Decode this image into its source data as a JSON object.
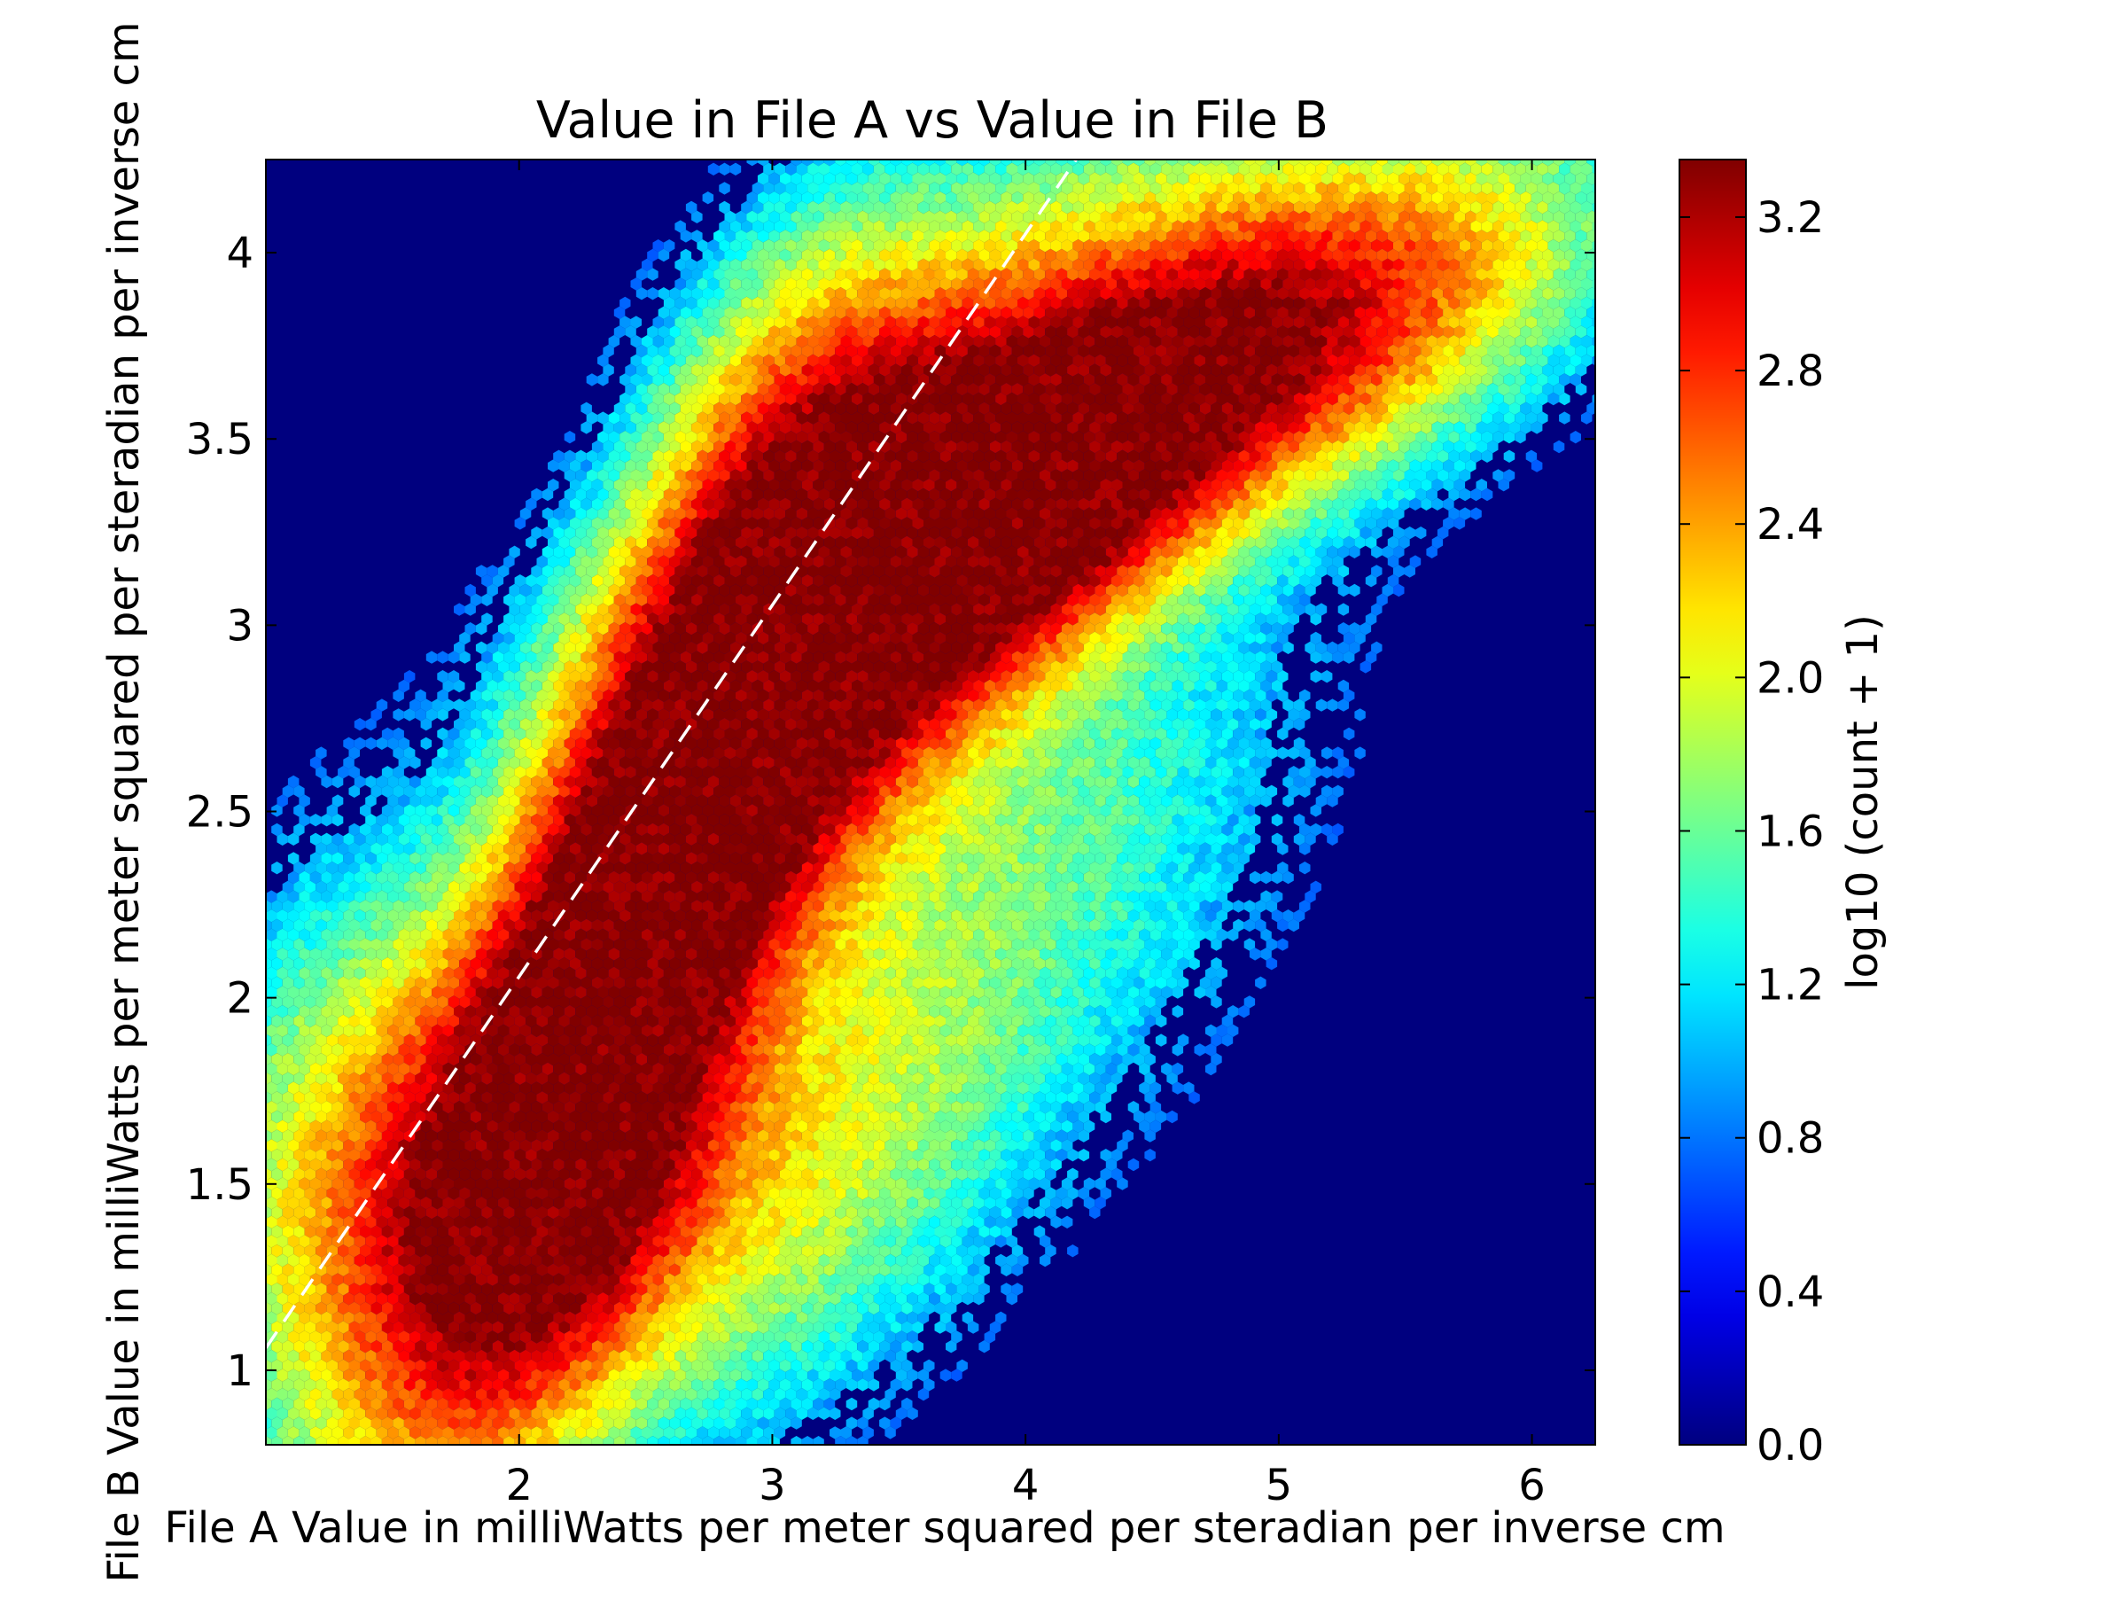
{
  "chart_data": {
    "type": "heatmap",
    "subtype": "hexbin",
    "title": "Value in File A vs Value in File B",
    "xlabel": "File A Value in milliWatts per meter squared per steradian per inverse cm",
    "ylabel": "File B Value in milliWatts per meter squared per steradian per inverse cm",
    "xlim": [
      1.0,
      6.25
    ],
    "ylim": [
      0.8,
      4.25
    ],
    "xticks": [
      2,
      3,
      4,
      5,
      6
    ],
    "xtick_labels": [
      "2",
      "3",
      "4",
      "5",
      "6"
    ],
    "yticks": [
      1,
      1.5,
      2,
      2.5,
      3,
      3.5,
      4
    ],
    "ytick_labels": [
      "1",
      "1.5",
      "2",
      "2.5",
      "3",
      "3.5",
      "4"
    ],
    "colormap": "jet",
    "background_color": "#00007f",
    "colorbar": {
      "label": "log10 (count + 1)",
      "range": [
        0.0,
        3.35
      ],
      "ticks": [
        0.0,
        0.4,
        0.8,
        1.2,
        1.6,
        2.0,
        2.4,
        2.8,
        3.2
      ],
      "tick_labels": [
        "0.0",
        "0.4",
        "0.8",
        "1.2",
        "1.6",
        "2.0",
        "2.4",
        "2.8",
        "3.2"
      ]
    },
    "reference_line": {
      "style": "dashed",
      "color": "#ffffff",
      "points": [
        [
          1.0,
          1.06
        ],
        [
          4.2,
          4.25
        ]
      ]
    },
    "density_peaks": [
      {
        "x": 2.45,
        "y": 2.2,
        "value": 3.3
      },
      {
        "x": 3.35,
        "y": 3.05,
        "value": 3.25
      },
      {
        "x": 4.75,
        "y": 3.6,
        "value": 3.15
      },
      {
        "x": 4.0,
        "y": 3.25,
        "value": 3.0
      },
      {
        "x": 2.05,
        "y": 1.45,
        "value": 3.0
      },
      {
        "x": 2.2,
        "y": 1.85,
        "value": 3.0
      }
    ]
  }
}
